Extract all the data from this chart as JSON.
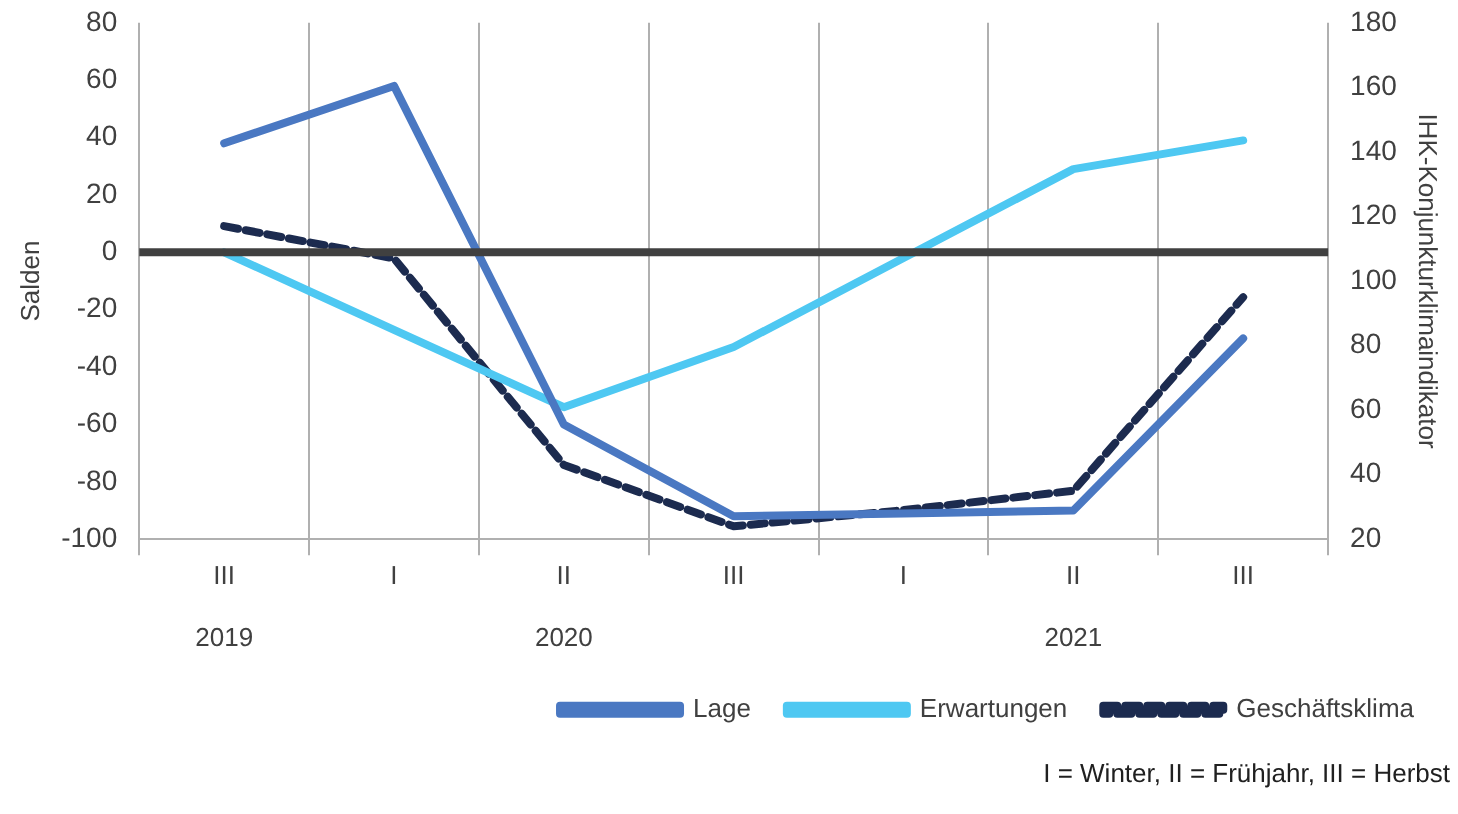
{
  "chart_data": {
    "type": "line",
    "categories": [
      "III\n2019",
      "I",
      "II\n2020",
      "III",
      "I",
      "II\n2021",
      "III"
    ],
    "ylabel": "Salden",
    "y2label": "IHK-Konjunkturklimaindikator",
    "ylim": [
      -100,
      80
    ],
    "yticks": [
      -100,
      -80,
      -60,
      -40,
      -20,
      0,
      20,
      40,
      60,
      80
    ],
    "y2lim": [
      20,
      180
    ],
    "y2ticks": [
      20,
      40,
      60,
      80,
      100,
      120,
      140,
      160,
      180
    ],
    "series": [
      {
        "name": "Lage",
        "color": "#4a78c2",
        "values": [
          38,
          58,
          -60,
          -92,
          -91,
          -90,
          -30
        ]
      },
      {
        "name": "Erwartungen",
        "color": "#4ec8f2",
        "values": [
          0,
          -27,
          -54,
          -33,
          -2,
          29,
          39
        ]
      },
      {
        "name": "Geschäftsklima",
        "color": "#1c2b4f",
        "axis": "y2",
        "line_style": "dashed",
        "values": [
          117,
          107,
          43,
          24,
          29,
          35,
          95
        ]
      }
    ],
    "ref_lines": [
      {
        "axis": "y",
        "value": 0,
        "color": "#404040"
      }
    ],
    "annotations": [
      "I = Winter, II = Frühjahr, III = Herbst"
    ],
    "grid": "x",
    "legend": "bottom",
    "marker": "none"
  }
}
